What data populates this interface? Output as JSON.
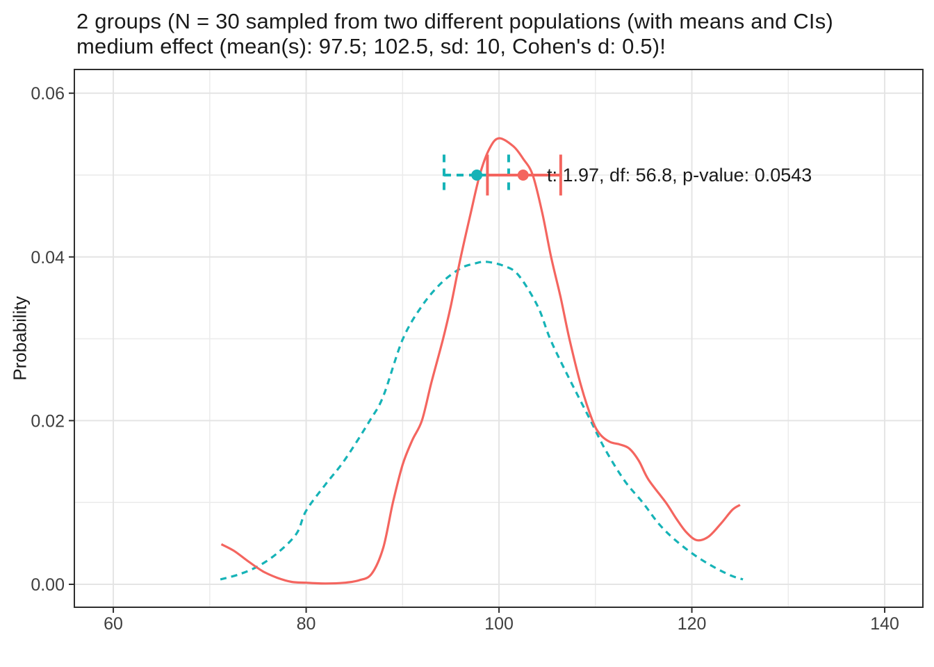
{
  "chart_data": {
    "type": "line",
    "title_line1": "2 groups (N = 30 sampled from two different populations (with means and CIs)",
    "title_line2": "medium effect (mean(s): 97.5; 102.5, sd: 10, Cohen's d: 0.5)!",
    "ylabel": "Probability",
    "xlabel": "",
    "x_domain": [
      55.96,
      143.96
    ],
    "y_domain": [
      -0.0028,
      0.0629
    ],
    "x_breaks": [
      60,
      80,
      100,
      120,
      140
    ],
    "x_break_labels": [
      "60",
      "80",
      "100",
      "120",
      "140"
    ],
    "x_minor_breaks": [
      70,
      90,
      110,
      130
    ],
    "y_breaks": [
      0,
      0.02,
      0.04,
      0.06
    ],
    "y_break_labels": [
      "0.00",
      "0.02",
      "0.04",
      "0.06"
    ],
    "y_minor_breaks": [
      0.01,
      0.03,
      0.05
    ],
    "grid": true,
    "legend": "none",
    "series": [
      {
        "name": "population-1-density",
        "style": "dashed",
        "color": "#16B3B7",
        "points": [
          [
            71.1,
            0.0006
          ],
          [
            73,
            0.0012
          ],
          [
            75,
            0.0022
          ],
          [
            77,
            0.0038
          ],
          [
            79,
            0.0062
          ],
          [
            80,
            0.009
          ],
          [
            82,
            0.0122
          ],
          [
            84,
            0.0152
          ],
          [
            86.6,
            0.02
          ],
          [
            88,
            0.023
          ],
          [
            90,
            0.0299
          ],
          [
            92,
            0.034
          ],
          [
            94,
            0.0368
          ],
          [
            96,
            0.0386
          ],
          [
            97.5,
            0.0392
          ],
          [
            98.7,
            0.0394
          ],
          [
            100.5,
            0.0389
          ],
          [
            102,
            0.0378
          ],
          [
            104,
            0.034
          ],
          [
            105.3,
            0.03
          ],
          [
            107,
            0.0258
          ],
          [
            109.5,
            0.02
          ],
          [
            111,
            0.0165
          ],
          [
            113,
            0.0127
          ],
          [
            114.9,
            0.01
          ],
          [
            116.5,
            0.0075
          ],
          [
            118,
            0.0057
          ],
          [
            120,
            0.0038
          ],
          [
            122,
            0.0023
          ],
          [
            124,
            0.0011
          ],
          [
            125.3,
            0.0006
          ]
        ]
      },
      {
        "name": "population-2-density",
        "style": "solid",
        "color": "#F4655F",
        "points": [
          [
            71.2,
            0.0049
          ],
          [
            72.5,
            0.0041
          ],
          [
            74,
            0.0028
          ],
          [
            75.5,
            0.0016
          ],
          [
            77,
            0.0008
          ],
          [
            78.5,
            0.0003
          ],
          [
            80,
            0.0002
          ],
          [
            82,
            0.0001
          ],
          [
            84,
            0.0002
          ],
          [
            85.5,
            0.0005
          ],
          [
            86.8,
            0.0013
          ],
          [
            88,
            0.0045
          ],
          [
            89,
            0.01
          ],
          [
            90,
            0.0146
          ],
          [
            91,
            0.0176
          ],
          [
            92,
            0.02
          ],
          [
            93,
            0.0247
          ],
          [
            94.2,
            0.03
          ],
          [
            95,
            0.034
          ],
          [
            96,
            0.0398
          ],
          [
            97,
            0.045
          ],
          [
            98,
            0.05
          ],
          [
            99,
            0.0532
          ],
          [
            100,
            0.0545
          ],
          [
            101.5,
            0.0535
          ],
          [
            102.5,
            0.052
          ],
          [
            103.5,
            0.05
          ],
          [
            104.5,
            0.0453
          ],
          [
            105.4,
            0.04
          ],
          [
            106.4,
            0.035
          ],
          [
            107.3,
            0.03
          ],
          [
            108.5,
            0.0243
          ],
          [
            109.7,
            0.02
          ],
          [
            110.5,
            0.0183
          ],
          [
            111.5,
            0.0174
          ],
          [
            112.5,
            0.0171
          ],
          [
            113.5,
            0.0166
          ],
          [
            114.5,
            0.0151
          ],
          [
            115.5,
            0.0128
          ],
          [
            117.3,
            0.01
          ],
          [
            118.4,
            0.008
          ],
          [
            119.4,
            0.0064
          ],
          [
            120.5,
            0.0054
          ],
          [
            121.7,
            0.0058
          ],
          [
            123,
            0.0074
          ],
          [
            124.2,
            0.0091
          ],
          [
            125,
            0.0097
          ]
        ]
      }
    ],
    "error_bars": [
      {
        "name": "group-1-mean-ci",
        "color": "#16B3B7",
        "style": "dashed",
        "y": 0.05,
        "center": 97.7,
        "low": 94.3,
        "high": 101.0,
        "cap_half_height": 0.0025
      },
      {
        "name": "group-2-mean-ci",
        "color": "#F4655F",
        "style": "solid",
        "y": 0.05,
        "center": 102.5,
        "low": 98.8,
        "high": 106.4,
        "cap_half_height": 0.0025
      }
    ],
    "annotation": {
      "text": "t: 1.97, df: 56.8, p-value: 0.0543",
      "x": 105.0,
      "y": 0.05
    },
    "colors": {
      "red": "#F4655F",
      "teal": "#16B3B7",
      "grid_major": "#E4E4E4",
      "grid_minor": "#ECECEC",
      "panel_border": "#2E2E2E",
      "tick_mark": "#2E2E2E",
      "tick_text": "#3F3F3F",
      "text": "#1A1A1A",
      "panel_background": "#FFFFFF"
    }
  }
}
